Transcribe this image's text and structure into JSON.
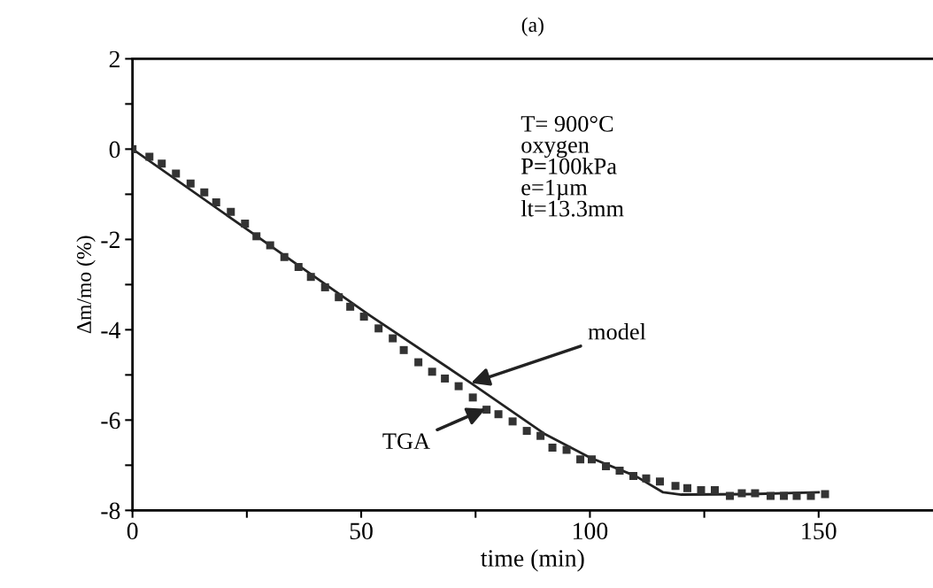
{
  "chart_data": {
    "type": "scatter",
    "title": "(a)",
    "xlabel": "time (min)",
    "ylabel": "Δm/mo (%)",
    "xlim": [
      0,
      175
    ],
    "xticks": [
      0,
      {
        "value": 25,
        "label": null
      },
      50,
      {
        "value": 75,
        "label": null
      },
      100,
      {
        "value": 125,
        "label": null
      },
      150
    ],
    "ylim": [
      -8,
      2
    ],
    "yticks": [
      -8,
      {
        "value": -7,
        "label": null
      },
      -6,
      {
        "value": -5,
        "label": null
      },
      -4,
      {
        "value": -3,
        "label": null
      },
      -2,
      {
        "value": -1,
        "label": null
      },
      0,
      {
        "value": 1,
        "label": null
      },
      2
    ],
    "grid": false,
    "legend": false,
    "series": [
      {
        "marker": "square",
        "color": "#333333",
        "x": [
          0,
          3.7,
          6.4,
          9.5,
          12.7,
          15.7,
          18.3,
          21.5,
          24.6,
          27.1,
          30.1,
          33.2,
          36.3,
          39.0,
          42.1,
          45.1,
          47.6,
          50.6,
          53.8,
          56.9,
          59.3,
          62.5,
          65.5,
          68.3,
          71.3,
          74.4,
          77.4,
          80.0,
          83.1,
          86.2,
          89.2,
          91.8,
          94.9,
          97.9,
          100.4,
          103.5,
          106.5,
          109.5,
          112.3,
          115.3,
          118.7,
          121.3,
          124.3,
          127.3,
          130.6,
          133.2,
          136.1,
          139.5,
          142.4,
          145.2,
          148.3,
          151.4
        ],
        "values": [
          0,
          -0.17,
          -0.32,
          -0.54,
          -0.76,
          -0.96,
          -1.18,
          -1.39,
          -1.65,
          -1.93,
          -2.13,
          -2.39,
          -2.61,
          -2.83,
          -3.06,
          -3.28,
          -3.49,
          -3.71,
          -3.97,
          -4.19,
          -4.45,
          -4.72,
          -4.93,
          -5.08,
          -5.25,
          -5.5,
          -5.77,
          -5.87,
          -6.03,
          -6.24,
          -6.35,
          -6.61,
          -6.66,
          -6.87,
          -6.87,
          -7.02,
          -7.12,
          -7.24,
          -7.29,
          -7.36,
          -7.46,
          -7.51,
          -7.55,
          -7.55,
          -7.68,
          -7.62,
          -7.62,
          -7.68,
          -7.68,
          -7.68,
          -7.68,
          -7.64
        ]
      },
      {
        "type": "line",
        "marker": "none",
        "line_style": "solid",
        "color": "#222222",
        "x": [
          0,
          52,
          74,
          90,
          100,
          110,
          116,
          120,
          135,
          150
        ],
        "values": [
          0,
          -3.69,
          -5.18,
          -6.3,
          -6.83,
          -7.24,
          -7.6,
          -7.65,
          -7.64,
          -7.6
        ]
      }
    ],
    "annotations": [
      "T= 900°C\noxygen\nP=100kPa\ne=1µm\nlt=13.3mm",
      {
        "text": "model",
        "x": 74,
        "y": -5.18
      },
      {
        "text": "TGA",
        "x": 77.2,
        "y": -5.75
      }
    ]
  }
}
